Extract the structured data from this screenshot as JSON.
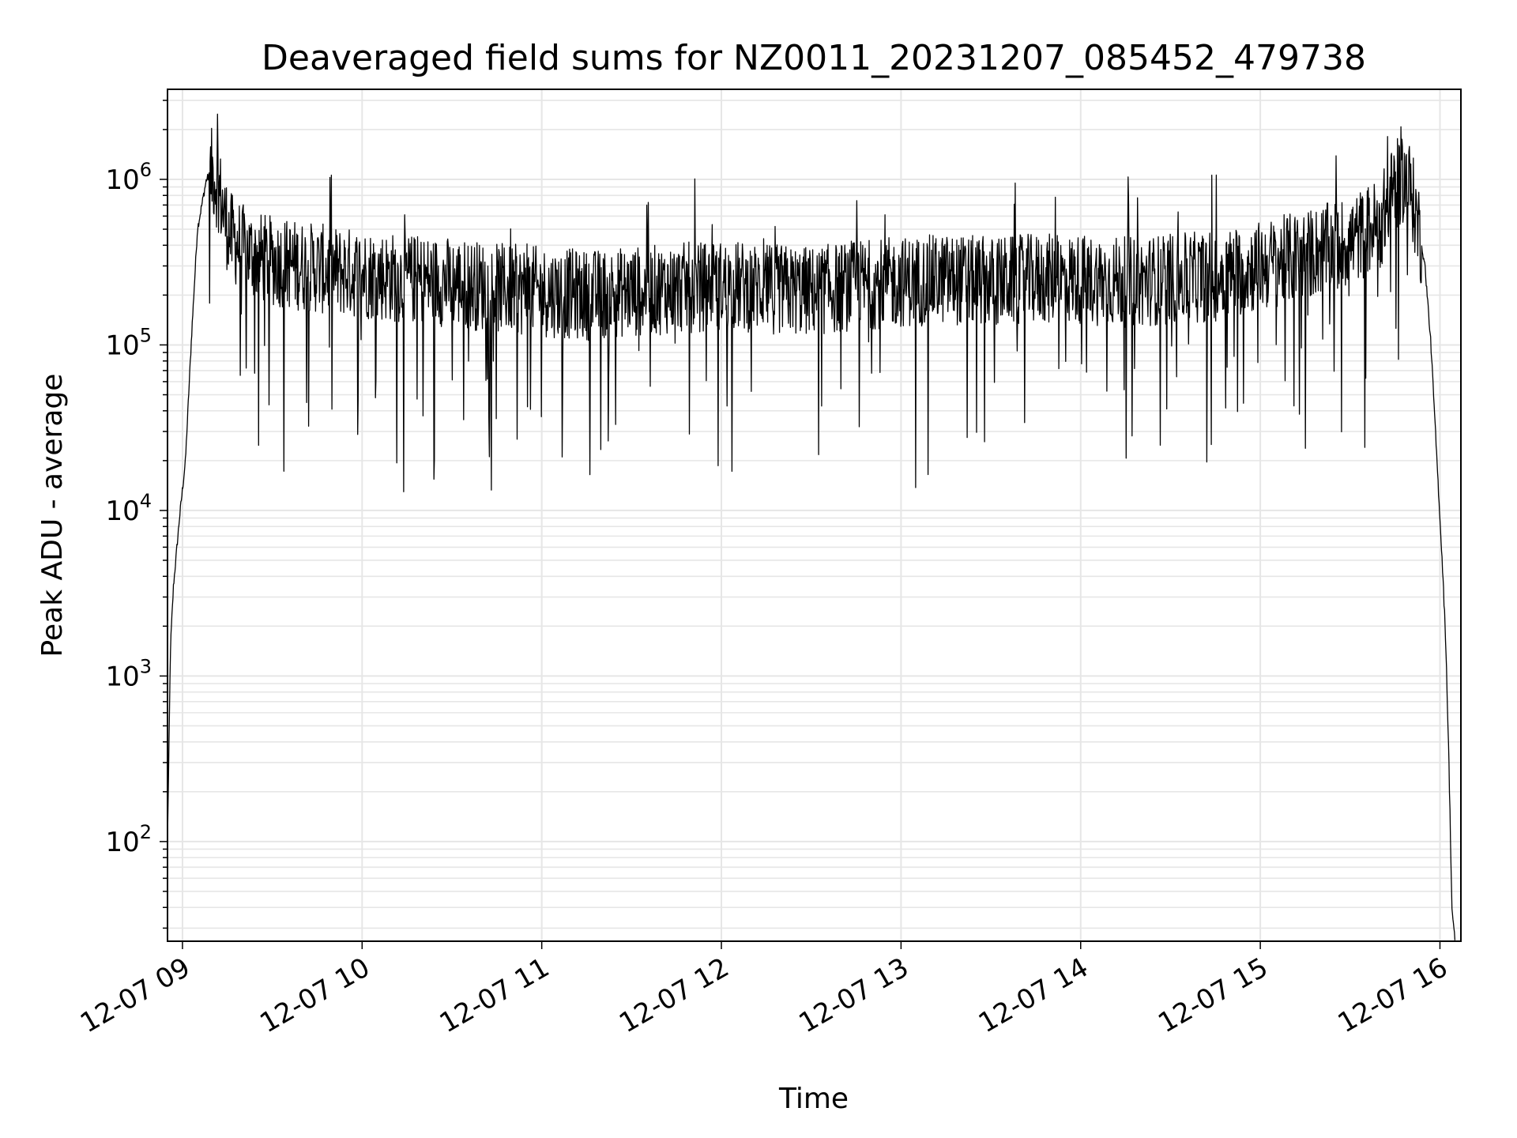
{
  "chart_data": {
    "type": "line",
    "title": "Deaveraged field sums for NZ0011_20231207_085452_479738",
    "xlabel": "Time",
    "ylabel": "Peak ADU - average",
    "yscale": "log",
    "ylim": [
      25,
      3500000
    ],
    "xlim": [
      "2023-12-07 08:55",
      "2023-12-07 16:07"
    ],
    "grid": "on (major and minor, light gray)",
    "legend": "none",
    "line_color": "#000000",
    "x_ticks": [
      "12-07 09",
      "12-07 10",
      "12-07 11",
      "12-07 12",
      "12-07 13",
      "12-07 14",
      "12-07 15",
      "12-07 16"
    ],
    "y_ticks": [
      {
        "value": 100,
        "base": "10",
        "exp": "2"
      },
      {
        "value": 1000,
        "base": "10",
        "exp": "3"
      },
      {
        "value": 10000,
        "base": "10",
        "exp": "4"
      },
      {
        "value": 100000,
        "base": "10",
        "exp": "5"
      },
      {
        "value": 1000000,
        "base": "10",
        "exp": "6"
      }
    ],
    "series": [
      {
        "x": [
          "2023-12-07 08:55",
          "2023-12-07 08:56",
          "2023-12-07 08:57",
          "2023-12-07 08:59",
          "2023-12-07 09:01",
          "2023-12-07 09:03",
          "2023-12-07 09:05",
          "2023-12-07 09:08",
          "2023-12-07 09:10",
          "2023-12-07 09:12",
          "2023-12-07 09:14",
          "2023-12-07 09:16",
          "2023-12-07 09:18",
          "2023-12-07 09:20",
          "2023-12-07 09:25",
          "2023-12-07 09:30",
          "2023-12-07 09:40",
          "2023-12-07 09:50",
          "2023-12-07 10:00",
          "2023-12-07 10:15",
          "2023-12-07 10:30",
          "2023-12-07 10:45",
          "2023-12-07 11:00",
          "2023-12-07 11:15",
          "2023-12-07 11:30",
          "2023-12-07 11:45",
          "2023-12-07 12:00",
          "2023-12-07 12:15",
          "2023-12-07 12:30",
          "2023-12-07 12:45",
          "2023-12-07 13:00",
          "2023-12-07 13:15",
          "2023-12-07 13:30",
          "2023-12-07 13:45",
          "2023-12-07 14:00",
          "2023-12-07 14:15",
          "2023-12-07 14:30",
          "2023-12-07 14:45",
          "2023-12-07 15:00",
          "2023-12-07 15:15",
          "2023-12-07 15:30",
          "2023-12-07 15:40",
          "2023-12-07 15:45",
          "2023-12-07 15:48",
          "2023-12-07 15:50",
          "2023-12-07 15:53",
          "2023-12-07 15:55",
          "2023-12-07 15:57",
          "2023-12-07 15:59",
          "2023-12-07 16:00",
          "2023-12-07 16:01",
          "2023-12-07 16:02",
          "2023-12-07 16:03",
          "2023-12-07 16:04",
          "2023-12-07 16:05"
        ],
        "values": [
          100,
          1500,
          3500,
          9000,
          20000,
          110000,
          500000,
          1000000,
          1100000,
          900000,
          600000,
          450000,
          420000,
          380000,
          340000,
          320000,
          300000,
          280000,
          270000,
          250000,
          240000,
          220000,
          210000,
          200000,
          210000,
          220000,
          230000,
          220000,
          210000,
          230000,
          240000,
          250000,
          240000,
          250000,
          250000,
          240000,
          250000,
          260000,
          300000,
          350000,
          420000,
          550000,
          900000,
          1050000,
          900000,
          500000,
          300000,
          100000,
          20000,
          9000,
          4000,
          1500,
          300,
          40,
          25
        ]
      }
    ]
  }
}
